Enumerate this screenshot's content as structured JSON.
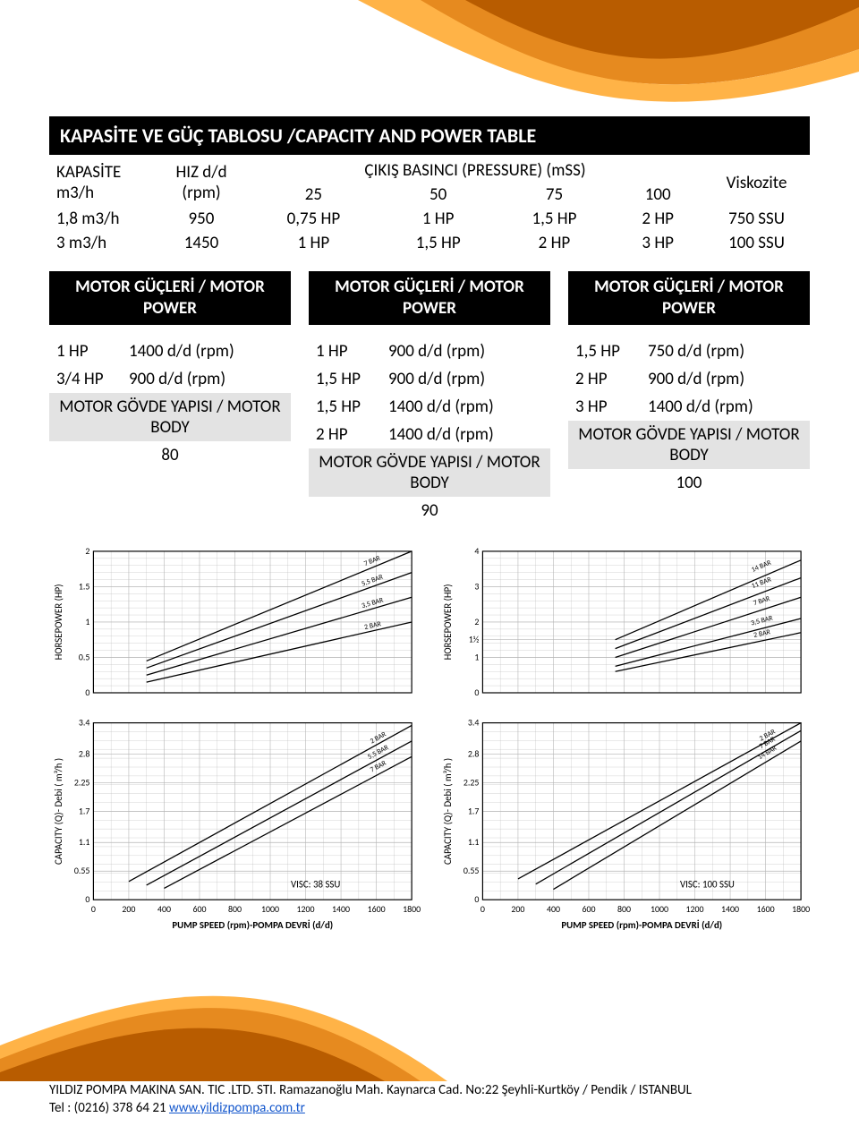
{
  "colors": {
    "swoosh_orange_dark": "#b85c00",
    "swoosh_orange_mid": "#e68a1f",
    "swoosh_orange_light": "#ffb347",
    "black": "#000000",
    "grey_band": "#e3e3e3",
    "grid": "#b5b5b5",
    "axis": "#000000",
    "line": "#000000"
  },
  "title": "KAPASİTE VE GÜÇ TABLOSU /CAPACITY AND POWER TABLE",
  "cap_table": {
    "headers": {
      "col1": "KAPASİTE m3/h",
      "col2": "HIZ d/d (rpm)",
      "group": "ÇIKIŞ BASINCI (PRESSURE) (mSS)",
      "group_cols": [
        "25",
        "50",
        "75",
        "100"
      ],
      "last": "Viskozite"
    },
    "rows": [
      [
        "1,8 m3/h",
        "950",
        "0,75 HP",
        "1 HP",
        "1,5 HP",
        "2 HP",
        "750 SSU"
      ],
      [
        "3 m3/h",
        "1450",
        "1 HP",
        "1,5 HP",
        "2 HP",
        "3 HP",
        "100 SSU"
      ]
    ]
  },
  "mp_header": "MOTOR GÜÇLERİ / MOTOR POWER",
  "body_label": "MOTOR GÖVDE YAPISI / MOTOR BODY",
  "columns": [
    {
      "rows": [
        [
          "1 HP",
          "1400 d/d  (rpm)"
        ],
        [
          "3/4 HP",
          "900 d/d  (rpm)"
        ]
      ],
      "body_value": "80"
    },
    {
      "rows": [
        [
          "1 HP",
          "900 d/d  (rpm)"
        ],
        [
          "1,5 HP",
          "900 d/d  (rpm)"
        ],
        [
          "1,5 HP",
          "1400 d/d (rpm)"
        ],
        [
          "2 HP",
          "1400 d/d (rpm)"
        ]
      ],
      "body_value": "90"
    },
    {
      "rows": [
        [
          "1,5 HP",
          "750 d/d  (rpm)"
        ],
        [
          "2 HP",
          "900 d/d  (rpm)"
        ],
        [
          "3 HP",
          "1400 d/d (rpm)"
        ]
      ],
      "body_value": "100"
    }
  ],
  "charts": {
    "x_label": "PUMP SPEED (rpm)-POMPA DEVRİ (d/d)",
    "hp_ylabel": "HORSEPOWER  (HP)",
    "q_ylabel": "CAPACITY (Q)- Debi ( m³/h )",
    "x_ticks": [
      0,
      200,
      400,
      600,
      800,
      1000,
      1200,
      1400,
      1600,
      1800
    ],
    "left": {
      "visc": "VISC:   38 SSU",
      "hp": {
        "ylim": [
          0,
          2
        ],
        "yticks": [
          0,
          0.5,
          1,
          1.5,
          2
        ],
        "series": [
          {
            "label": "2 BAR",
            "x0": 300,
            "y0": 0.15,
            "x1": 1800,
            "y1": 1.0
          },
          {
            "label": "3,5 BAR",
            "x0": 300,
            "y0": 0.25,
            "x1": 1800,
            "y1": 1.35
          },
          {
            "label": "5,5 BAR",
            "x0": 300,
            "y0": 0.35,
            "x1": 1800,
            "y1": 1.7
          },
          {
            "label": "7 BAR",
            "x0": 300,
            "y0": 0.45,
            "x1": 1800,
            "y1": 2.0
          }
        ]
      },
      "q": {
        "ylim": [
          0,
          3.4
        ],
        "yticks": [
          0,
          0.55,
          1.1,
          1.7,
          2.25,
          2.8,
          3.4
        ],
        "series": [
          {
            "label": "2 BAR",
            "x0": 200,
            "y0": 0.35,
            "x1": 1800,
            "y1": 3.35
          },
          {
            "label": "5,5 BAR",
            "x0": 300,
            "y0": 0.28,
            "x1": 1800,
            "y1": 3.05
          },
          {
            "label": "7 BAR",
            "x0": 400,
            "y0": 0.22,
            "x1": 1800,
            "y1": 2.75
          }
        ]
      }
    },
    "right": {
      "visc": "VISC:   100 SSU",
      "hp": {
        "ylim": [
          0,
          4
        ],
        "yticks": [
          0,
          1,
          1.5,
          2,
          3,
          4
        ],
        "yticks_labels": [
          "0",
          "1",
          "1½",
          "2",
          "3",
          "4"
        ],
        "series": [
          {
            "label": "2 BAR",
            "x0": 750,
            "y0": 0.6,
            "x1": 1800,
            "y1": 1.7
          },
          {
            "label": "3,5 BAR",
            "x0": 750,
            "y0": 0.75,
            "x1": 1800,
            "y1": 2.1
          },
          {
            "label": "7 BAR",
            "x0": 750,
            "y0": 1.0,
            "x1": 1800,
            "y1": 2.7
          },
          {
            "label": "11 BAR",
            "x0": 750,
            "y0": 1.25,
            "x1": 1800,
            "y1": 3.25
          },
          {
            "label": "14 BAR",
            "x0": 750,
            "y0": 1.5,
            "x1": 1800,
            "y1": 3.75
          }
        ]
      },
      "q": {
        "ylim": [
          0,
          3.4
        ],
        "yticks": [
          0,
          0.55,
          1.1,
          1.7,
          2.25,
          2.8,
          3.4
        ],
        "series": [
          {
            "label": "2 BAR",
            "x0": 200,
            "y0": 0.4,
            "x1": 1800,
            "y1": 3.4
          },
          {
            "label": "7 BAR",
            "x0": 300,
            "y0": 0.3,
            "x1": 1800,
            "y1": 3.25
          },
          {
            "label": "14 BAR",
            "x0": 400,
            "y0": 0.2,
            "x1": 1800,
            "y1": 3.05
          }
        ]
      }
    }
  },
  "footer": {
    "line1": "YILDIZ POMPA MAKINA SAN. TIC .LTD. STI. Ramazanoğlu Mah. Kaynarca Cad. No:22 Şeyhli-Kurtköy / Pendik / ISTANBUL",
    "line2_prefix": "Tel : (0216) 378 64 21 ",
    "line2_link": "www.yildizpompa.com.tr"
  }
}
